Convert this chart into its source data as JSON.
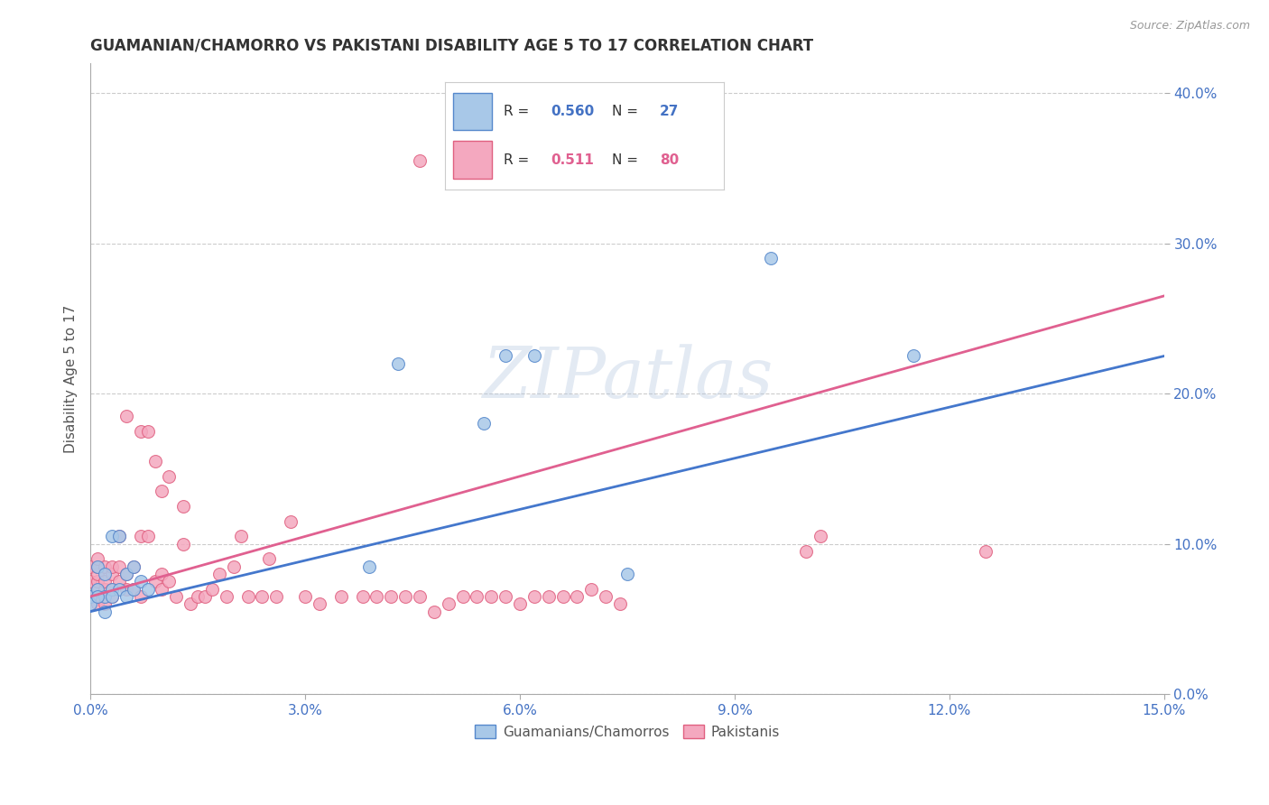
{
  "title": "GUAMANIAN/CHAMORRO VS PAKISTANI DISABILITY AGE 5 TO 17 CORRELATION CHART",
  "source": "Source: ZipAtlas.com",
  "ylabel": "Disability Age 5 to 17",
  "xlim": [
    0.0,
    0.15
  ],
  "ylim": [
    0.0,
    0.42
  ],
  "xticks": [
    0.0,
    0.03,
    0.06,
    0.09,
    0.12,
    0.15
  ],
  "xticklabels": [
    "0.0%",
    "3.0%",
    "6.0%",
    "9.0%",
    "12.0%",
    "15.0%"
  ],
  "yticks_right": [
    0.0,
    0.1,
    0.2,
    0.3,
    0.4
  ],
  "yticklabels_right": [
    "0.0%",
    "10.0%",
    "20.0%",
    "30.0%",
    "40.0%"
  ],
  "background_color": "#ffffff",
  "grid_color": "#cccccc",
  "watermark": "ZIPatlas",
  "blue_color": "#a8c8e8",
  "pink_color": "#f4a8bf",
  "blue_edge_color": "#5588cc",
  "pink_edge_color": "#e06080",
  "blue_line_color": "#4477cc",
  "pink_line_color": "#e06090",
  "legend_r_blue": "0.560",
  "legend_n_blue": "27",
  "legend_r_pink": "0.511",
  "legend_n_pink": "80",
  "guamanian_x": [
    0.0,
    0.001,
    0.001,
    0.002,
    0.002,
    0.003,
    0.003,
    0.004,
    0.005,
    0.005,
    0.006,
    0.006,
    0.007,
    0.008,
    0.039,
    0.043,
    0.055,
    0.058,
    0.062,
    0.075,
    0.095,
    0.115,
    0.0,
    0.001,
    0.002,
    0.003,
    0.004
  ],
  "guamanian_y": [
    0.065,
    0.07,
    0.085,
    0.065,
    0.08,
    0.07,
    0.105,
    0.07,
    0.065,
    0.08,
    0.07,
    0.085,
    0.075,
    0.07,
    0.085,
    0.22,
    0.18,
    0.225,
    0.225,
    0.08,
    0.29,
    0.225,
    0.06,
    0.065,
    0.055,
    0.065,
    0.105
  ],
  "pakistani_x": [
    0.0,
    0.0,
    0.0,
    0.001,
    0.001,
    0.001,
    0.001,
    0.001,
    0.001,
    0.001,
    0.002,
    0.002,
    0.002,
    0.002,
    0.003,
    0.003,
    0.003,
    0.003,
    0.004,
    0.004,
    0.004,
    0.005,
    0.005,
    0.005,
    0.006,
    0.006,
    0.007,
    0.007,
    0.007,
    0.008,
    0.008,
    0.009,
    0.009,
    0.01,
    0.01,
    0.01,
    0.011,
    0.011,
    0.012,
    0.013,
    0.013,
    0.014,
    0.015,
    0.016,
    0.017,
    0.018,
    0.019,
    0.02,
    0.021,
    0.022,
    0.024,
    0.025,
    0.026,
    0.028,
    0.03,
    0.032,
    0.035,
    0.038,
    0.04,
    0.042,
    0.044,
    0.046,
    0.048,
    0.05,
    0.052,
    0.054,
    0.056,
    0.058,
    0.06,
    0.062,
    0.064,
    0.066,
    0.068,
    0.07,
    0.072,
    0.074,
    0.1,
    0.102,
    0.125,
    0.046
  ],
  "pakistani_y": [
    0.065,
    0.075,
    0.085,
    0.06,
    0.065,
    0.07,
    0.075,
    0.08,
    0.085,
    0.09,
    0.06,
    0.07,
    0.075,
    0.085,
    0.065,
    0.07,
    0.08,
    0.085,
    0.075,
    0.085,
    0.105,
    0.07,
    0.08,
    0.185,
    0.07,
    0.085,
    0.065,
    0.105,
    0.175,
    0.105,
    0.175,
    0.075,
    0.155,
    0.07,
    0.08,
    0.135,
    0.075,
    0.145,
    0.065,
    0.1,
    0.125,
    0.06,
    0.065,
    0.065,
    0.07,
    0.08,
    0.065,
    0.085,
    0.105,
    0.065,
    0.065,
    0.09,
    0.065,
    0.115,
    0.065,
    0.06,
    0.065,
    0.065,
    0.065,
    0.065,
    0.065,
    0.065,
    0.055,
    0.06,
    0.065,
    0.065,
    0.065,
    0.065,
    0.06,
    0.065,
    0.065,
    0.065,
    0.065,
    0.07,
    0.065,
    0.06,
    0.095,
    0.105,
    0.095,
    0.355
  ],
  "blue_trend_x": [
    0.0,
    0.15
  ],
  "blue_trend_y": [
    0.055,
    0.225
  ],
  "pink_trend_x": [
    0.0,
    0.15
  ],
  "pink_trend_y": [
    0.065,
    0.265
  ]
}
